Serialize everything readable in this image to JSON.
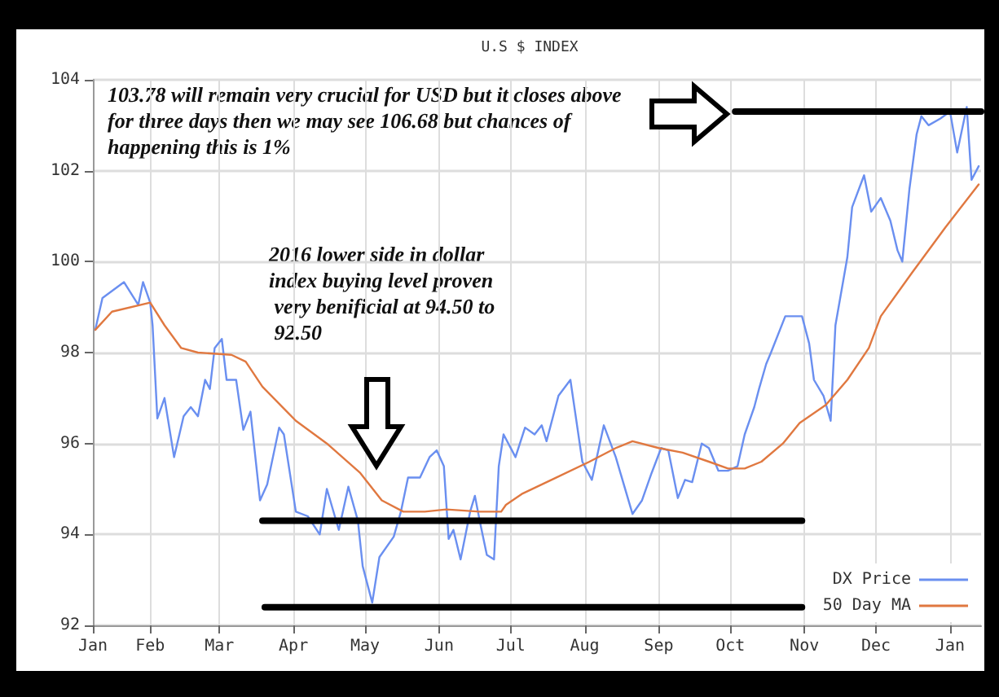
{
  "chart_data": {
    "type": "line",
    "title": "U.S $ INDEX",
    "annotations": [
      "103.78 will remain very crucial for USD but it closes above for three days then we may see 106.68 but chances of happening this is 1%",
      "2016 lower side in dollar index buying level proven very benificial at 94.50 to 92.50"
    ],
    "xlim": [
      "2016-01-08",
      "2017-01-14"
    ],
    "xticks": [
      {
        "value": "2016-01-08",
        "label": "Jan"
      },
      {
        "value": "2016-02-01",
        "label": "Feb"
      },
      {
        "value": "2016-03-01",
        "label": "Mar"
      },
      {
        "value": "2016-04-01",
        "label": "Apr"
      },
      {
        "value": "2016-05-01",
        "label": "May"
      },
      {
        "value": "2016-06-01",
        "label": "Jun"
      },
      {
        "value": "2016-07-01",
        "label": "Jul"
      },
      {
        "value": "2016-08-01",
        "label": "Aug"
      },
      {
        "value": "2016-09-01",
        "label": "Sep"
      },
      {
        "value": "2016-10-01",
        "label": "Oct"
      },
      {
        "value": "2016-11-01",
        "label": "Nov"
      },
      {
        "value": "2016-12-01",
        "label": "Dec"
      },
      {
        "value": "2017-01-01",
        "label": "Jan"
      }
    ],
    "ylim": [
      92,
      104
    ],
    "yticks": [
      92,
      94,
      96,
      98,
      100,
      102,
      104
    ],
    "grid": true,
    "legend": "bottom right",
    "marker": "none",
    "line_style": "solid",
    "series": [
      {
        "name": "DX Price",
        "color": "#6a8ff0",
        "x": [
          "2016-01-09",
          "2016-01-12",
          "2016-01-21",
          "2016-01-27",
          "2016-01-29",
          "2016-02-01",
          "2016-02-02",
          "2016-02-04",
          "2016-02-07",
          "2016-02-11",
          "2016-02-15",
          "2016-02-18",
          "2016-02-21",
          "2016-02-24",
          "2016-02-26",
          "2016-02-28",
          "2016-03-02",
          "2016-03-04",
          "2016-03-08",
          "2016-03-11",
          "2016-03-14",
          "2016-03-18",
          "2016-03-21",
          "2016-03-26",
          "2016-03-28",
          "2016-04-02",
          "2016-04-07",
          "2016-04-12",
          "2016-04-15",
          "2016-04-20",
          "2016-04-24",
          "2016-04-28",
          "2016-04-30",
          "2016-05-04",
          "2016-05-07",
          "2016-05-13",
          "2016-05-16",
          "2016-05-19",
          "2016-05-24",
          "2016-05-28",
          "2016-05-31",
          "2016-06-03",
          "2016-06-05",
          "2016-06-07",
          "2016-06-10",
          "2016-06-14",
          "2016-06-16",
          "2016-06-18",
          "2016-06-21",
          "2016-06-24",
          "2016-06-26",
          "2016-06-28",
          "2016-07-03",
          "2016-07-07",
          "2016-07-11",
          "2016-07-14",
          "2016-07-16",
          "2016-07-21",
          "2016-07-26",
          "2016-07-31",
          "2016-08-04",
          "2016-08-09",
          "2016-08-14",
          "2016-08-21",
          "2016-08-25",
          "2016-08-29",
          "2016-09-02",
          "2016-09-05",
          "2016-09-09",
          "2016-09-12",
          "2016-09-15",
          "2016-09-19",
          "2016-09-22",
          "2016-09-26",
          "2016-09-30",
          "2016-10-04",
          "2016-10-07",
          "2016-10-11",
          "2016-10-13",
          "2016-10-16",
          "2016-10-18",
          "2016-10-24",
          "2016-10-31",
          "2016-11-03",
          "2016-11-05",
          "2016-11-09",
          "2016-11-12",
          "2016-11-14",
          "2016-11-19",
          "2016-11-21",
          "2016-11-26",
          "2016-11-29",
          "2016-12-03",
          "2016-12-07",
          "2016-12-10",
          "2016-12-12",
          "2016-12-15",
          "2016-12-18",
          "2016-12-20",
          "2016-12-23",
          "2016-12-28",
          "2017-01-01",
          "2017-01-04",
          "2017-01-08",
          "2017-01-10",
          "2017-01-13"
        ],
        "values": [
          98.5,
          99.2,
          99.55,
          99.05,
          99.55,
          99.1,
          98.6,
          96.55,
          97.0,
          95.7,
          96.6,
          96.8,
          96.6,
          97.4,
          97.2,
          98.1,
          98.3,
          97.4,
          97.4,
          96.3,
          96.7,
          94.75,
          95.1,
          96.35,
          96.2,
          94.5,
          94.4,
          94.0,
          95.0,
          94.1,
          95.05,
          94.3,
          93.3,
          92.5,
          93.5,
          93.95,
          94.5,
          95.25,
          95.25,
          95.7,
          95.85,
          95.5,
          93.9,
          94.1,
          93.45,
          94.5,
          94.85,
          94.3,
          93.55,
          93.45,
          95.5,
          96.2,
          95.7,
          96.35,
          96.2,
          96.4,
          96.05,
          97.05,
          97.4,
          95.6,
          95.2,
          96.4,
          95.7,
          94.45,
          94.75,
          95.35,
          95.9,
          95.85,
          94.8,
          95.2,
          95.15,
          96.0,
          95.9,
          95.4,
          95.4,
          95.5,
          96.2,
          96.8,
          97.2,
          97.75,
          98.0,
          98.8,
          98.8,
          98.2,
          97.4,
          97.05,
          96.5,
          98.6,
          100.1,
          101.2,
          101.9,
          101.1,
          101.4,
          100.9,
          100.25,
          100.0,
          101.6,
          102.8,
          103.2,
          103.0,
          103.15,
          103.3,
          102.4,
          103.4,
          101.8,
          102.1
        ]
      },
      {
        "name": "50 Day MA",
        "color": "#e07840",
        "x": [
          "2016-01-09",
          "2016-01-16",
          "2016-02-01",
          "2016-02-07",
          "2016-02-14",
          "2016-02-21",
          "2016-03-06",
          "2016-03-12",
          "2016-03-19",
          "2016-04-02",
          "2016-04-15",
          "2016-04-29",
          "2016-05-08",
          "2016-05-17",
          "2016-05-26",
          "2016-06-04",
          "2016-06-18",
          "2016-06-27",
          "2016-06-29",
          "2016-07-06",
          "2016-07-20",
          "2016-08-03",
          "2016-08-14",
          "2016-08-21",
          "2016-09-01",
          "2016-09-11",
          "2016-09-22",
          "2016-09-30",
          "2016-10-07",
          "2016-10-14",
          "2016-10-23",
          "2016-10-30",
          "2016-11-10",
          "2016-11-19",
          "2016-11-28",
          "2016-12-03",
          "2016-12-16",
          "2016-12-30",
          "2017-01-13"
        ],
        "values": [
          98.5,
          98.9,
          99.1,
          98.6,
          98.1,
          98.0,
          97.95,
          97.8,
          97.25,
          96.5,
          96.0,
          95.35,
          94.75,
          94.5,
          94.5,
          94.55,
          94.5,
          94.5,
          94.65,
          94.9,
          95.25,
          95.6,
          95.9,
          96.05,
          95.9,
          95.8,
          95.6,
          95.45,
          95.45,
          95.6,
          96.0,
          96.45,
          96.85,
          97.4,
          98.1,
          98.8,
          99.75,
          100.75,
          101.7
        ]
      },
      {
        "type": "line",
        "color": "#000000",
        "x": [
          "2016-03-19",
          "2016-10-31"
        ],
        "values": [
          94.3,
          94.3
        ]
      },
      {
        "type": "line",
        "color": "#000000",
        "x": [
          "2016-03-20",
          "2016-10-31"
        ],
        "values": [
          92.4,
          92.4
        ]
      },
      {
        "type": "line",
        "color": "#000000",
        "x": [
          "2016-10-03",
          "2017-01-14"
        ],
        "values": [
          103.3,
          103.3
        ]
      }
    ]
  }
}
